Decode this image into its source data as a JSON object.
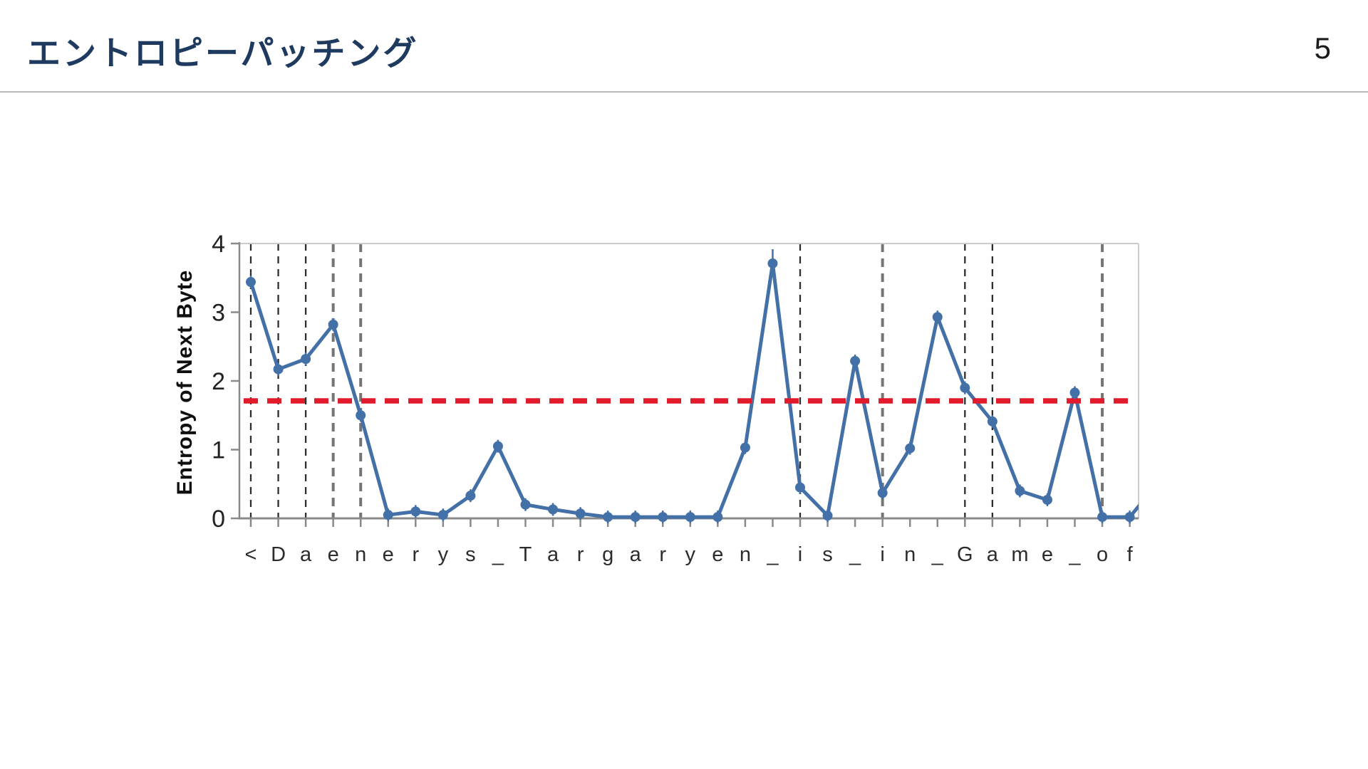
{
  "slide": {
    "title": "エントロピーパッチング",
    "page_number": "5"
  },
  "chart_data": {
    "type": "line",
    "title": "",
    "xlabel": "",
    "ylabel": "Entropy of Next Byte",
    "ylim": [
      0,
      4
    ],
    "yticks": [
      "0",
      "1",
      "2",
      "3",
      "4"
    ],
    "grid": false,
    "legend": false,
    "categories": [
      "<",
      "D",
      "a",
      "e",
      "n",
      "e",
      "r",
      "y",
      "s",
      "_",
      "T",
      "a",
      "r",
      "g",
      "a",
      "r",
      "y",
      "e",
      "n",
      "_",
      "i",
      "s",
      "_",
      "i",
      "n",
      "_",
      "G",
      "a",
      "m",
      "e",
      "_",
      "o",
      "f"
    ],
    "series": [
      {
        "name": "entropy_of_next_byte",
        "values": [
          3.44,
          2.17,
          2.32,
          2.82,
          1.5,
          0.05,
          0.1,
          0.05,
          0.33,
          1.05,
          0.2,
          0.13,
          0.07,
          0.02,
          0.02,
          0.02,
          0.02,
          0.02,
          1.03,
          3.71,
          0.45,
          0.04,
          2.29,
          0.37,
          1.02,
          2.93,
          1.9,
          1.41,
          0.4,
          0.27,
          1.83,
          0.02,
          0.02
        ]
      }
    ],
    "clipped_next_value": 0.5,
    "threshold_line": {
      "value": 1.71,
      "style": "dashed",
      "color": "#e11b2b"
    },
    "patch_boundaries": [
      {
        "index": 0,
        "style": "dark"
      },
      {
        "index": 1,
        "style": "dark"
      },
      {
        "index": 2,
        "style": "dark"
      },
      {
        "index": 3,
        "style": "gray"
      },
      {
        "index": 4,
        "style": "gray"
      },
      {
        "index": 20,
        "style": "dark"
      },
      {
        "index": 23,
        "style": "gray"
      },
      {
        "index": 26,
        "style": "dark"
      },
      {
        "index": 27,
        "style": "dark"
      },
      {
        "index": 31,
        "style": "gray"
      }
    ],
    "colors": {
      "line": "#4470a8",
      "threshold": "#e11b2b",
      "boundary_dark": "#2e2e2e",
      "boundary_gray": "#757575",
      "axis_dark": "#8a8a8a",
      "axis_light": "#cccccc",
      "tick_label": "#222222"
    }
  }
}
